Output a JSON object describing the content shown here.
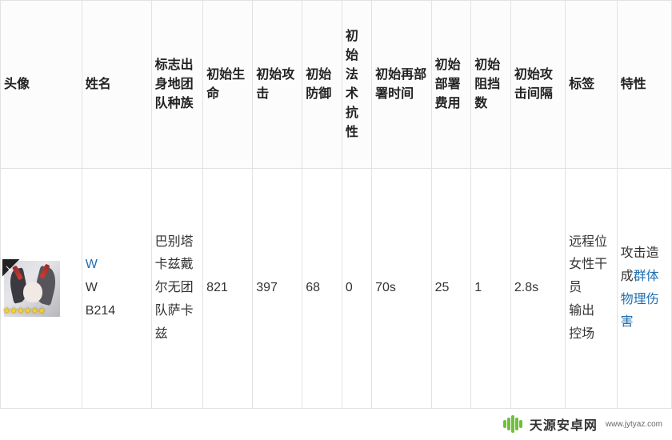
{
  "table": {
    "headers": {
      "avatar": "头像",
      "name": "姓名",
      "origin": "标志出身地团队种族",
      "hp": "初始生命",
      "atk": "初始攻击",
      "def": "初始防御",
      "res": "初始法术抗性",
      "redeploy": "初始再部署时间",
      "cost": "初始部署费用",
      "block": "初始阻挡数",
      "interval": "初始攻击间隔",
      "tags": "标签",
      "trait": "特性"
    },
    "row": {
      "name_alias": "W",
      "name_main": "W",
      "code": "B214",
      "origin_text": "巴别塔卡兹戴尔无团队萨卡兹",
      "hp": "821",
      "atk": "397",
      "def": "68",
      "res": "0",
      "redeploy": "70s",
      "cost": "25",
      "block": "1",
      "interval": "2.8s",
      "tag1": "远程位",
      "tag2": "女性干员",
      "tag3": "输出",
      "tag4": "控场",
      "trait_prefix": "攻击造成",
      "trait_link": "群体物理伤害",
      "rarity_stars": "★★★★★★"
    }
  },
  "colors": {
    "border": "#e2e2e2",
    "header_bg": "#fcfcfc",
    "text": "#222222",
    "link": "#1f6fb2",
    "star": "#f7cf2e",
    "wm_green": "#6fbf3b"
  },
  "watermark": {
    "text": "天源安卓网",
    "sub": "www.jytyaz.com"
  }
}
